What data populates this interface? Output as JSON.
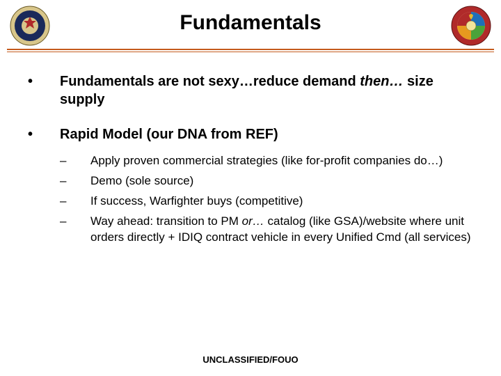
{
  "title": "Fundamentals",
  "colors": {
    "rule": "#c45a1c",
    "text": "#000000",
    "background": "#ffffff"
  },
  "typography": {
    "title_fontsize": 30,
    "bullet_fontsize": 20,
    "subbullet_fontsize": 17,
    "footer_fontsize": 13,
    "font_family": "Arial"
  },
  "bullets": [
    {
      "marker": "•",
      "html": "Fundamentals are not sexy…reduce demand <em>then…</em> size supply"
    },
    {
      "marker": "•",
      "html": "Rapid Model (our DNA from REF)",
      "children": [
        {
          "marker": "–",
          "html": "Apply proven commercial strategies (like for-profit companies do…)"
        },
        {
          "marker": "–",
          "html": "Demo (sole source)"
        },
        {
          "marker": "–",
          "html": "If success, Warfighter buys (competitive)"
        },
        {
          "marker": "–",
          "html": "Way ahead:  transition to PM <em>or…</em> catalog (like GSA)/website where unit orders directly + IDIQ contract vehicle in every Unified Cmd (all services)"
        }
      ]
    }
  ],
  "footer": "UNCLASSIFIED/FOUO",
  "seals": {
    "left": {
      "name": "dod-seal",
      "outer_ring": "#d8c68a",
      "inner": "#1a2a5a",
      "accent": "#b02a2a"
    },
    "right": {
      "name": "power-surety-task-force-seal",
      "ring": "#b02a2a",
      "quad_colors": [
        "#1e6fb8",
        "#4aa33a",
        "#e69a1f",
        "#b02a2a"
      ],
      "center": "#f2e49a"
    }
  }
}
